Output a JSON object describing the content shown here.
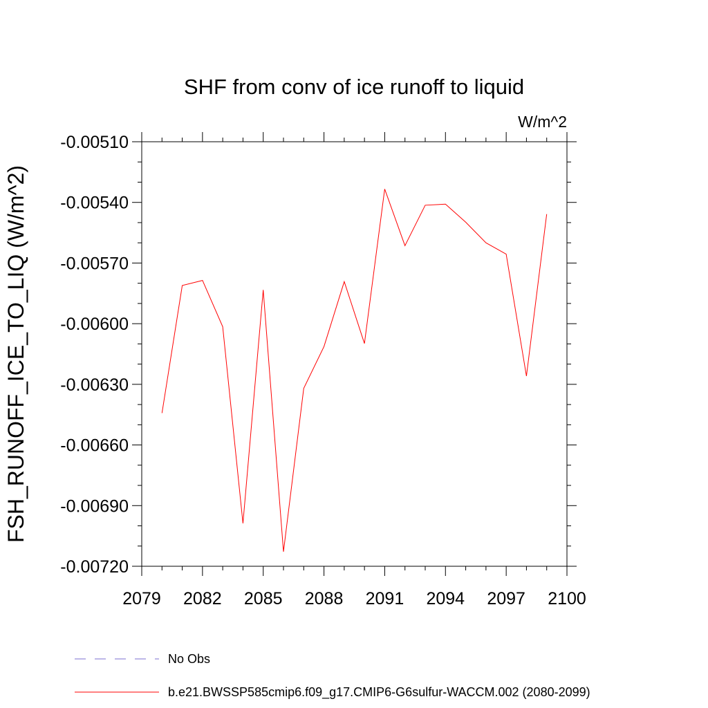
{
  "chart_data": {
    "type": "line",
    "title": "SHF from conv of ice runoff to liquid",
    "units": "W/m^2",
    "xlabel": "",
    "ylabel": "FSH_RUNOFF_ICE_TO_LIQ  (W/m^2)",
    "xlim": [
      2079,
      2100
    ],
    "ylim": [
      -0.0072,
      -0.0051
    ],
    "x_ticks": [
      2079,
      2082,
      2085,
      2088,
      2091,
      2094,
      2097,
      2100
    ],
    "x_tick_labels": [
      "2079",
      "2082",
      "2085",
      "2088",
      "2091",
      "2094",
      "2097",
      "2100"
    ],
    "y_ticks": [
      -0.0051,
      -0.0054,
      -0.0057,
      -0.006,
      -0.0063,
      -0.0066,
      -0.0069,
      -0.0072
    ],
    "y_tick_labels": [
      "-0.00510",
      "-0.00540",
      "-0.00570",
      "-0.00600",
      "-0.00630",
      "-0.00660",
      "-0.00690",
      "-0.00720"
    ],
    "grid": false,
    "legend_position": "bottom",
    "series": [
      {
        "name": "b.e21.BWSSP585cmip6.f09_g17.CMIP6-G6sulfur-WACCM.002 (2080-2099)",
        "color": "#ff0000",
        "style": "solid",
        "x": [
          2080,
          2081,
          2082,
          2083,
          2084,
          2085,
          2086,
          2087,
          2088,
          2089,
          2090,
          2091,
          2092,
          2093,
          2094,
          2095,
          2096,
          2097,
          2098,
          2099
        ],
        "y": [
          -0.006442,
          -0.005811,
          -0.005786,
          -0.006015,
          -0.006988,
          -0.005833,
          -0.007128,
          -0.00632,
          -0.006113,
          -0.005792,
          -0.006098,
          -0.005334,
          -0.005614,
          -0.005414,
          -0.005409,
          -0.005498,
          -0.0056,
          -0.005656,
          -0.006259,
          -0.005458
        ]
      }
    ],
    "legend": [
      {
        "label": "No Obs",
        "color": "#7b6fd0",
        "style": "dashed"
      },
      {
        "label": "b.e21.BWSSP585cmip6.f09_g17.CMIP6-G6sulfur-WACCM.002 (2080-2099)",
        "color": "#ff0000",
        "style": "solid"
      }
    ]
  }
}
